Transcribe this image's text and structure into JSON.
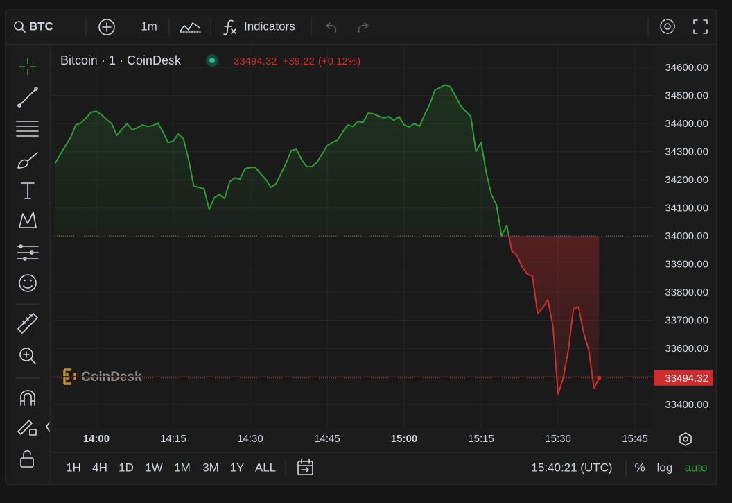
{
  "toolbar": {
    "search": "BTC",
    "interval": "1m",
    "indicators": "Indicators"
  },
  "chart_data": {
    "type": "line",
    "title": "Bitcoin · 1 · CoinDesk",
    "last_price": 33494.32,
    "change": "+39.22",
    "change_pct": "(+0.12%)",
    "watermark": "CoinDesk",
    "color_up": "#2e9e34",
    "color_down": "#d12b2b",
    "baseline": 34000,
    "x": [
      "13:52",
      "13:53",
      "13:54",
      "13:55",
      "13:56",
      "13:57",
      "13:58",
      "13:59",
      "14:00",
      "14:01",
      "14:02",
      "14:03",
      "14:04",
      "14:05",
      "14:06",
      "14:07",
      "14:08",
      "14:09",
      "14:10",
      "14:11",
      "14:12",
      "14:13",
      "14:14",
      "14:15",
      "14:16",
      "14:17",
      "14:18",
      "14:19",
      "14:20",
      "14:21",
      "14:22",
      "14:23",
      "14:24",
      "14:25",
      "14:26",
      "14:27",
      "14:28",
      "14:29",
      "14:30",
      "14:31",
      "14:32",
      "14:33",
      "14:34",
      "14:35",
      "14:36",
      "14:37",
      "14:38",
      "14:39",
      "14:40",
      "14:41",
      "14:42",
      "14:43",
      "14:44",
      "14:45",
      "14:46",
      "14:47",
      "14:48",
      "14:49",
      "14:50",
      "14:51",
      "14:52",
      "14:53",
      "14:54",
      "14:55",
      "14:56",
      "14:57",
      "14:58",
      "14:59",
      "15:00",
      "15:01",
      "15:02",
      "15:03",
      "15:04",
      "15:05",
      "15:06",
      "15:07",
      "15:08",
      "15:09",
      "15:10",
      "15:11",
      "15:12",
      "15:13",
      "15:14",
      "15:15",
      "15:16",
      "15:17",
      "15:18",
      "15:19",
      "15:20",
      "15:21",
      "15:22",
      "15:23",
      "15:24",
      "15:25",
      "15:26",
      "15:27",
      "15:28",
      "15:29",
      "15:30",
      "15:31",
      "15:32",
      "15:33",
      "15:34",
      "15:35",
      "15:36",
      "15:37",
      "15:38"
    ],
    "values": [
      34259,
      34291,
      34321,
      34351,
      34395,
      34402,
      34420,
      34440,
      34444,
      34432,
      34415,
      34400,
      34358,
      34380,
      34400,
      34378,
      34385,
      34395,
      34390,
      34393,
      34402,
      34370,
      34333,
      34338,
      34363,
      34346,
      34272,
      34178,
      34173,
      34168,
      34094,
      34136,
      34148,
      34133,
      34193,
      34207,
      34202,
      34240,
      34244,
      34244,
      34222,
      34202,
      34173,
      34185,
      34222,
      34259,
      34304,
      34309,
      34272,
      34247,
      34247,
      34262,
      34291,
      34321,
      34333,
      34341,
      34370,
      34395,
      34390,
      34407,
      34405,
      34437,
      34435,
      34427,
      34420,
      34425,
      34412,
      34425,
      34395,
      34388,
      34400,
      34390,
      34432,
      34469,
      34519,
      34528,
      34538,
      34531,
      34499,
      34464,
      34444,
      34425,
      34301,
      34333,
      34227,
      34148,
      34111,
      34000,
      34037,
      33946,
      33931,
      33889,
      33864,
      33857,
      33724,
      33743,
      33773,
      33679,
      33437,
      33494,
      33593,
      33741,
      33746,
      33654,
      33593,
      33457,
      33494.32
    ],
    "xlim": [
      "13:51:30",
      "15:48:30"
    ],
    "xticks": [
      "14:00",
      "14:15",
      "14:30",
      "14:45",
      "15:00",
      "15:15",
      "15:30",
      "15:45"
    ],
    "ylim": [
      33316,
      34672
    ],
    "yticks": [
      {
        "value": 33400,
        "label": "33400.00"
      },
      {
        "value": 33500,
        "label": "33500.00"
      },
      {
        "value": 33600,
        "label": "33600.00"
      },
      {
        "value": 33700,
        "label": "33700.00"
      },
      {
        "value": 33800,
        "label": "33800.00"
      },
      {
        "value": 33900,
        "label": "33900.00"
      },
      {
        "value": 34000,
        "label": "34000.00"
      },
      {
        "value": 34100,
        "label": "34100.00"
      },
      {
        "value": 34200,
        "label": "34200.00"
      },
      {
        "value": 34300,
        "label": "34300.00"
      },
      {
        "value": 34400,
        "label": "34400.00"
      },
      {
        "value": 34500,
        "label": "34500.00"
      },
      {
        "value": 34600,
        "label": "34600.00"
      }
    ],
    "grid": true
  },
  "bottom": {
    "ranges": [
      "1H",
      "4H",
      "1D",
      "1W",
      "1M",
      "3M",
      "1Y",
      "ALL"
    ],
    "clock": "15:40:21 (UTC)",
    "percent": "%",
    "log": "log",
    "auto": "auto"
  }
}
